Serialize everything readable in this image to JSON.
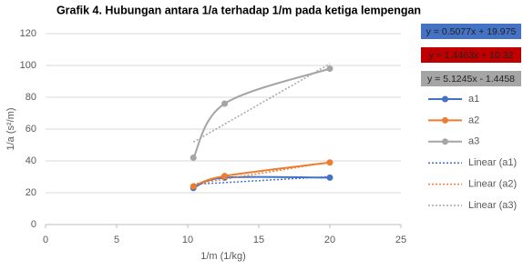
{
  "chart_data": {
    "type": "scatter-smooth",
    "title": "Grafik 4. Hubungan antara 1/a terhadap 1/m pada ketiga lempengan",
    "x_label": "1/m (1/kg)",
    "y_label": "1/a (s²/m)",
    "xlim": [
      0,
      25
    ],
    "xticks": [
      0,
      5,
      10,
      15,
      20,
      25
    ],
    "ylim": [
      0,
      120
    ],
    "yticks": [
      0,
      20,
      40,
      60,
      80,
      100,
      120
    ],
    "grid": true,
    "legend": "right",
    "series": [
      {
        "name": "a1",
        "color": "#4472c4",
        "x": [
          10.4,
          12.6,
          20
        ],
        "values": [
          23,
          29.5,
          29.5
        ]
      },
      {
        "name": "a2",
        "color": "#ed7d31",
        "x": [
          10.4,
          12.6,
          20
        ],
        "values": [
          24,
          30.5,
          39
        ]
      },
      {
        "name": "a3",
        "color": "#a5a5a5",
        "x": [
          10.4,
          12.6,
          20
        ],
        "values": [
          42,
          76,
          98
        ]
      }
    ],
    "trendlines": [
      {
        "name": "Linear (a1)",
        "color": "#4472c4",
        "label_color": "#4472c4",
        "equation": "y = 0.5077x + 19.975",
        "slope": 0.5077,
        "intercept": 19.975
      },
      {
        "name": "Linear (a2)",
        "color": "#ed7d31",
        "label_color": "#c00000",
        "equation": "y = 1.4463x + 10.32",
        "slope": 1.4463,
        "intercept": 10.32
      },
      {
        "name": "Linear (a3)",
        "color": "#a5a5a5",
        "label_color": "#a5a5a5",
        "equation": "y = 5.1245x - 1.4458",
        "slope": 5.1245,
        "intercept": -1.4458
      }
    ]
  }
}
